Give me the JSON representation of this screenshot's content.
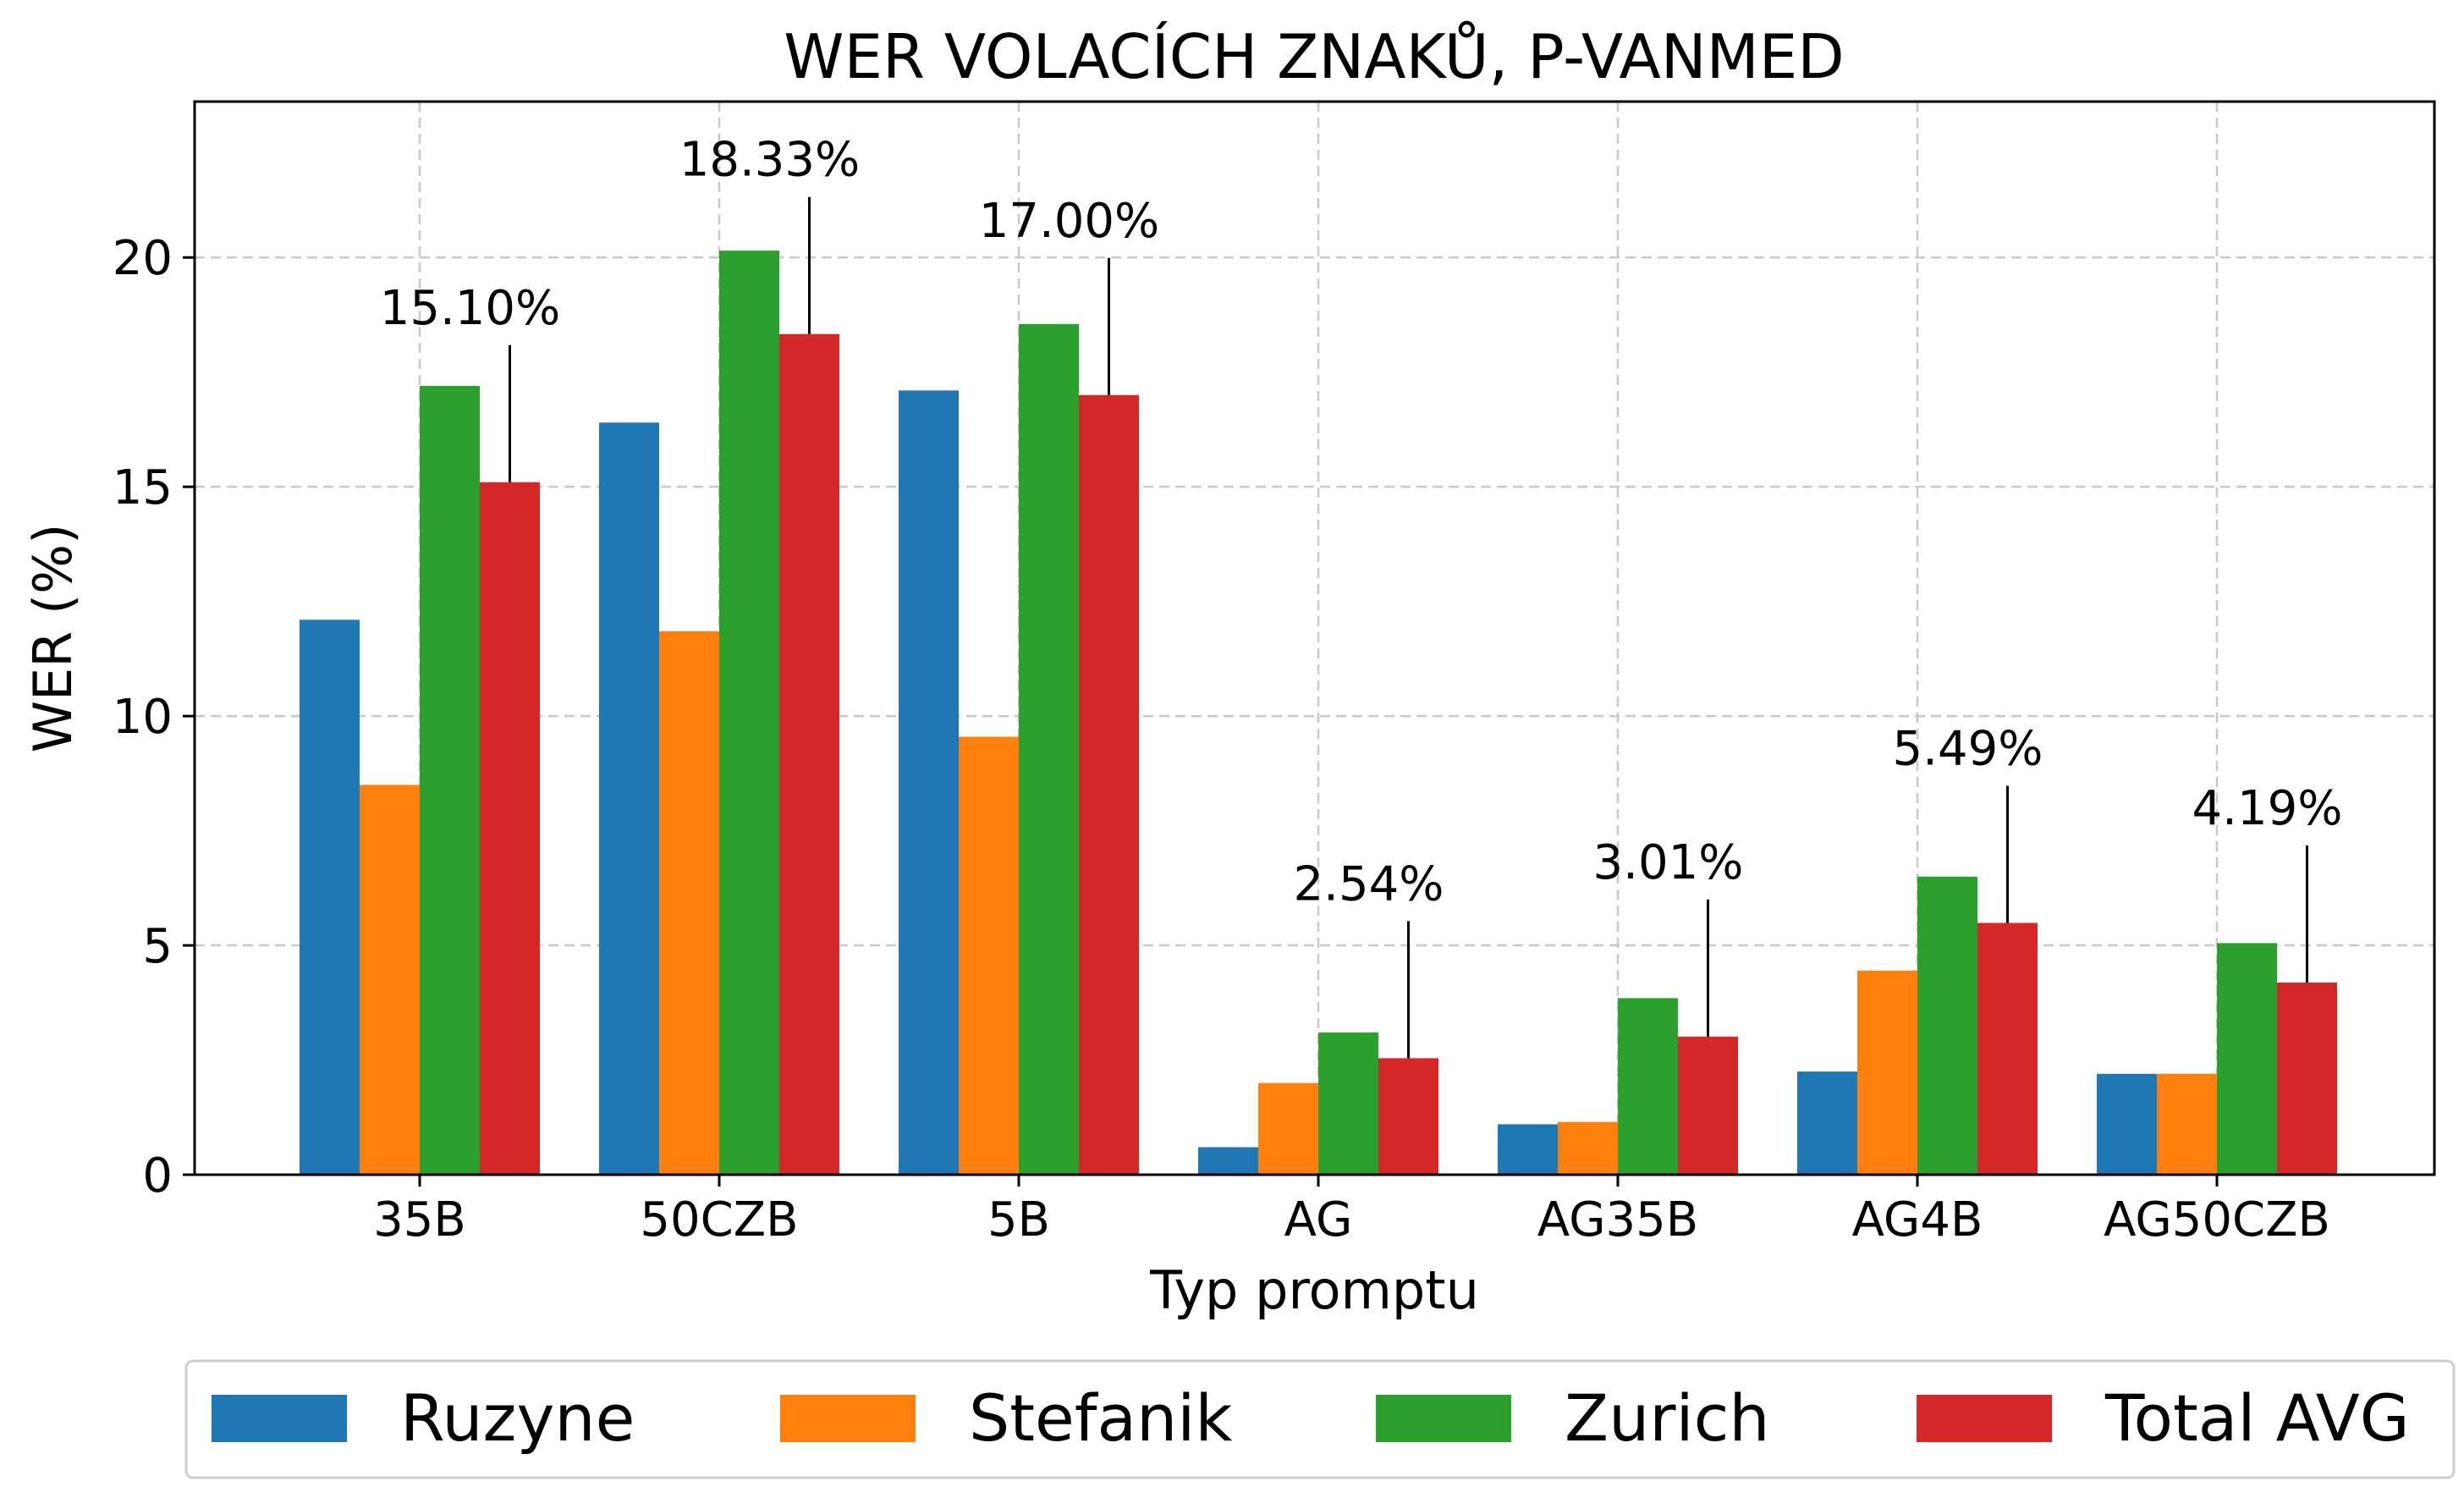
{
  "chart_data": {
    "type": "bar",
    "title": "WER VOLACÍCH ZNAKŮ, P-VANMED",
    "xlabel": "Typ promptu",
    "ylabel": "WER (%)",
    "categories": [
      "35B",
      "50CZB",
      "5B",
      "AG",
      "AG35B",
      "AG4B",
      "AG50CZB"
    ],
    "series": [
      {
        "name": "Ruzyne",
        "color": "#1f77b4",
        "values": [
          12.1,
          16.4,
          17.1,
          0.6,
          1.1,
          2.25,
          2.2
        ]
      },
      {
        "name": "Stefanik",
        "color": "#ff7f0e",
        "values": [
          8.5,
          11.85,
          9.55,
          2.0,
          1.15,
          4.45,
          2.2
        ]
      },
      {
        "name": "Zurich",
        "color": "#2ca02c",
        "values": [
          17.2,
          20.15,
          18.55,
          3.1,
          3.85,
          6.5,
          5.05
        ]
      },
      {
        "name": "Total AVG",
        "color": "#d62728",
        "values": [
          15.1,
          18.33,
          17.0,
          2.54,
          3.01,
          5.49,
          4.19
        ]
      }
    ],
    "annotations": [
      "15.10%",
      "18.33%",
      "17.00%",
      "2.54%",
      "3.01%",
      "5.49%",
      "4.19%"
    ],
    "yticks": [
      0,
      5,
      10,
      15,
      20
    ],
    "ylim": [
      0,
      23.4
    ],
    "grid": true,
    "legend_position": "bottom-outside"
  }
}
